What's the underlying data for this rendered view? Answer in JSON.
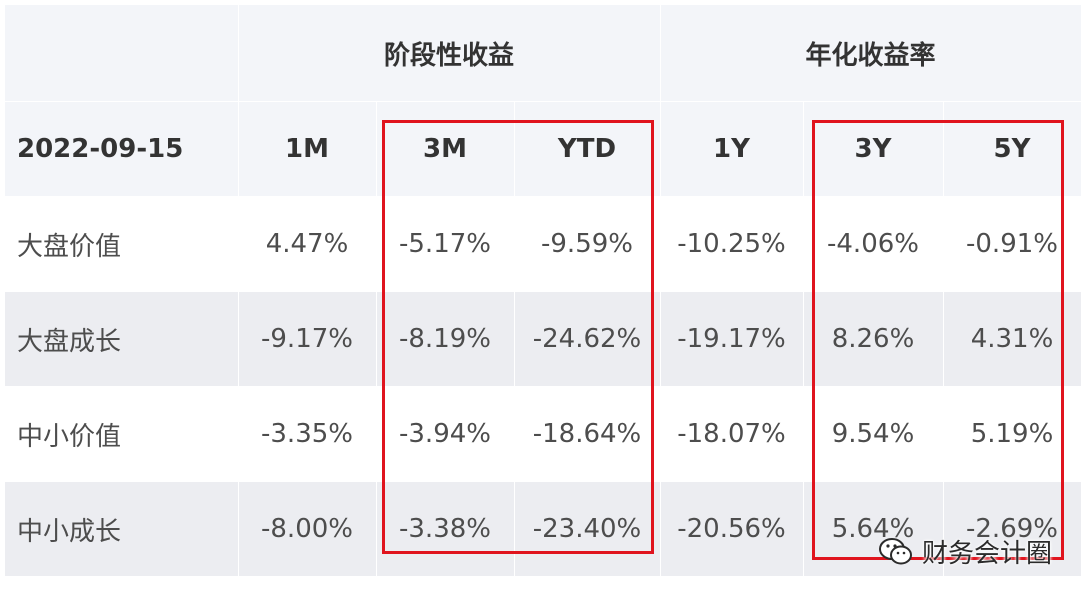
{
  "table": {
    "group_headers": [
      "",
      "阶段性收益",
      "年化收益率"
    ],
    "date": "2022-09-15",
    "periods": [
      "1M",
      "3M",
      "YTD",
      "1Y",
      "3Y",
      "5Y"
    ],
    "rows": [
      {
        "label": "大盘价值",
        "values": [
          "4.47%",
          "-5.17%",
          "-9.59%",
          "-10.25%",
          "-4.06%",
          "-0.91%"
        ]
      },
      {
        "label": "大盘成长",
        "values": [
          "-9.17%",
          "-8.19%",
          "-24.62%",
          "-19.17%",
          "8.26%",
          "4.31%"
        ]
      },
      {
        "label": "中小价值",
        "values": [
          "-3.35%",
          "-3.94%",
          "-18.64%",
          "-18.07%",
          "9.54%",
          "5.19%"
        ]
      },
      {
        "label": "中小成长",
        "values": [
          "-8.00%",
          "-3.38%",
          "-23.40%",
          "-20.56%",
          "5.64%",
          "-2.69%"
        ]
      }
    ]
  },
  "colors": {
    "highlight": "#e0141e",
    "header_bg": "#f3f5f9",
    "alt_row_bg": "#ecedf1"
  },
  "watermark": {
    "text": "财务会计圈",
    "icon": "wechat-icon"
  }
}
